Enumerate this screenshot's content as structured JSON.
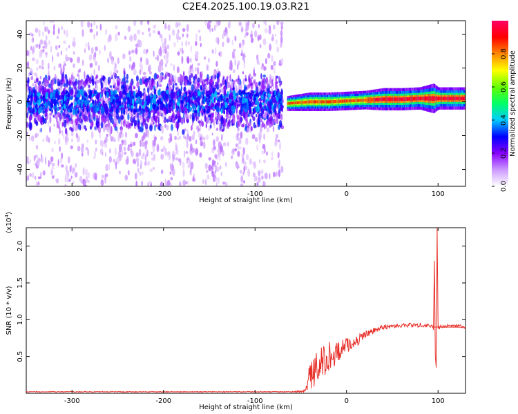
{
  "title": "C2E4.2025.100.19.03.R21",
  "chart_data": [
    {
      "type": "heatmap",
      "xlabel": "Height of straight line (km)",
      "ylabel": "Frequency (Hz)",
      "xlim": [
        -350,
        130
      ],
      "ylim": [
        -50,
        48
      ],
      "x_ticks": [
        -300,
        -200,
        -100,
        0,
        100
      ],
      "y_ticks": [
        -40,
        -20,
        0,
        20,
        40
      ],
      "noise_region_x": [
        -350,
        -70
      ],
      "core_band": {
        "x": [
          -65,
          -40,
          -20,
          0,
          20,
          40,
          60,
          80,
          95,
          100,
          130
        ],
        "center_hz": [
          -1,
          0,
          0,
          0.5,
          1,
          1.5,
          1.5,
          2,
          2,
          2,
          2
        ],
        "halfwidth_hz": [
          2,
          2.5,
          2.5,
          2.5,
          2.5,
          3,
          3,
          3,
          4,
          3,
          3
        ]
      },
      "colorbar": {
        "label": "Normalized spectral amplitude",
        "range": [
          0,
          1
        ],
        "ticks": [
          "0.0",
          "0.2",
          "0.4",
          "0.6",
          "0.8"
        ],
        "colors": [
          "#ffffff",
          "#cc99ff",
          "#8800ff",
          "#0000ff",
          "#00ccff",
          "#00ff66",
          "#66ff00",
          "#ffff00",
          "#ff8800",
          "#ff0000",
          "#ff0066"
        ]
      }
    },
    {
      "type": "line",
      "xlabel": "Height of straight line (km)",
      "ylabel": "SNR (10 * v/v)",
      "multiplier": "(x10",
      "multiplier_exp": "4",
      "xlim": [
        -350,
        130
      ],
      "ylim": [
        0,
        2.25
      ],
      "x_ticks": [
        -300,
        -200,
        -100,
        0,
        100
      ],
      "y_ticks": [
        "0.5",
        "1.0",
        "1.5",
        "2.0"
      ],
      "series": [
        {
          "color": "#e8302a",
          "x": [
            -350,
            -60,
            -45,
            -40,
            -30,
            -20,
            -10,
            0,
            10,
            20,
            30,
            40,
            60,
            80,
            90,
            95,
            96,
            97,
            98,
            99,
            100,
            105,
            110,
            120,
            130
          ],
          "y": [
            0.02,
            0.02,
            0.03,
            0.25,
            0.35,
            0.5,
            0.55,
            0.65,
            0.7,
            0.8,
            0.85,
            0.9,
            0.92,
            0.93,
            0.93,
            0.9,
            1.8,
            0.5,
            0.35,
            2.25,
            0.9,
            0.9,
            0.92,
            0.92,
            0.9
          ],
          "noise_amplitude": [
            0.005,
            0.005,
            0.02,
            0.2,
            0.25,
            0.2,
            0.15,
            0.1,
            0.08,
            0.05,
            0.04,
            0.03,
            0.03,
            0.03,
            0.03,
            0.05,
            0,
            0,
            0,
            0,
            0.04,
            0.02,
            0.02,
            0.02,
            0.02
          ]
        }
      ]
    }
  ]
}
